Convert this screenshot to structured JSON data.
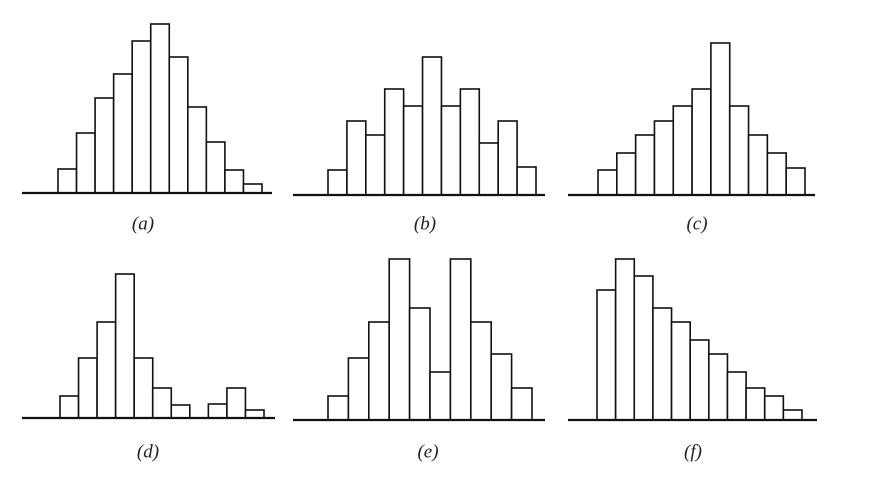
{
  "chart_data": [
    {
      "type": "bar",
      "title": "(a)",
      "categories": [
        null,
        null,
        null,
        null,
        null,
        null,
        null,
        null,
        null,
        null,
        null
      ],
      "values": [
        24,
        60,
        95,
        119,
        152,
        169,
        136,
        86,
        51,
        23,
        9
      ],
      "color": "#ffffff"
    },
    {
      "type": "bar",
      "title": "(b)",
      "categories": [
        null,
        null,
        null,
        null,
        null,
        null,
        null,
        null,
        null,
        null,
        null
      ],
      "values": [
        25,
        74,
        60,
        106,
        89,
        138,
        89,
        106,
        52,
        74,
        28
      ],
      "color": "#ffffff"
    },
    {
      "type": "bar",
      "title": "(c)",
      "categories": [
        null,
        null,
        null,
        null,
        null,
        null,
        null,
        null,
        null,
        null,
        null
      ],
      "values": [
        25,
        42,
        60,
        74,
        89,
        106,
        152,
        89,
        60,
        42,
        27
      ],
      "color": "#ffffff"
    },
    {
      "type": "bar",
      "title": "(d)",
      "categories": [
        null,
        null,
        null,
        null,
        null,
        null,
        null,
        null,
        null,
        null,
        null
      ],
      "values": [
        22,
        60,
        96,
        144,
        60,
        30,
        13,
        0,
        14,
        30,
        8
      ],
      "color": "#ffffff"
    },
    {
      "type": "bar",
      "title": "(e)",
      "categories": [
        null,
        null,
        null,
        null,
        null,
        null,
        null,
        null,
        null,
        null
      ],
      "values": [
        24,
        62,
        98,
        161,
        112,
        48,
        161,
        98,
        66,
        32
      ],
      "color": "#ffffff"
    },
    {
      "type": "bar",
      "title": "(f)",
      "categories": [
        null,
        null,
        null,
        null,
        null,
        null,
        null,
        null,
        null,
        null,
        null
      ],
      "values": [
        130,
        161,
        144,
        112,
        98,
        80,
        66,
        48,
        32,
        24,
        10
      ],
      "color": "#ffffff"
    }
  ]
}
